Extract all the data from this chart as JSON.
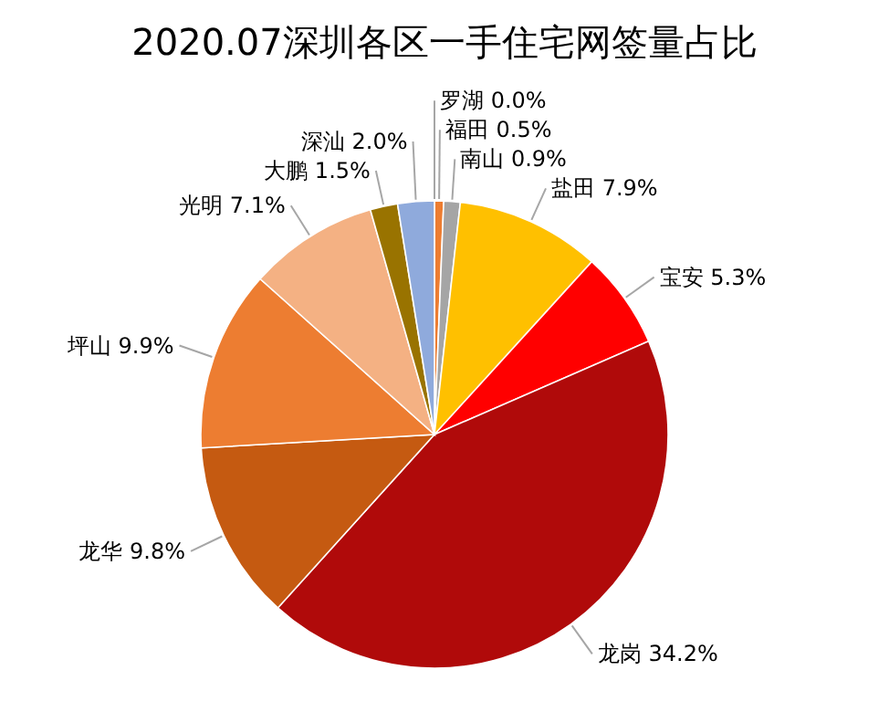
{
  "chart_data": {
    "type": "pie",
    "title": "2020.07深圳各区一手住宅网签量占比",
    "categories": [
      "罗湖",
      "福田",
      "南山",
      "盐田",
      "宝安",
      "龙岗",
      "龙华",
      "坪山",
      "光明",
      "大鹏",
      "深汕"
    ],
    "values": [
      0.0,
      0.5,
      0.9,
      7.9,
      5.3,
      34.2,
      9.8,
      9.9,
      7.1,
      1.5,
      2.0
    ],
    "value_labels": [
      "0.0%",
      "0.5%",
      "0.9%",
      "7.9%",
      "5.3%",
      "34.2%",
      "9.8%",
      "9.9%",
      "7.1%",
      "1.5%",
      "2.0%"
    ],
    "colors": [
      "#c00000",
      "#ed7d31",
      "#a5a5a5",
      "#ffc000",
      "#ff0000",
      "#b00a0a",
      "#c55a11",
      "#ed7d31",
      "#f4b183",
      "#997300",
      "#8faadc"
    ]
  }
}
